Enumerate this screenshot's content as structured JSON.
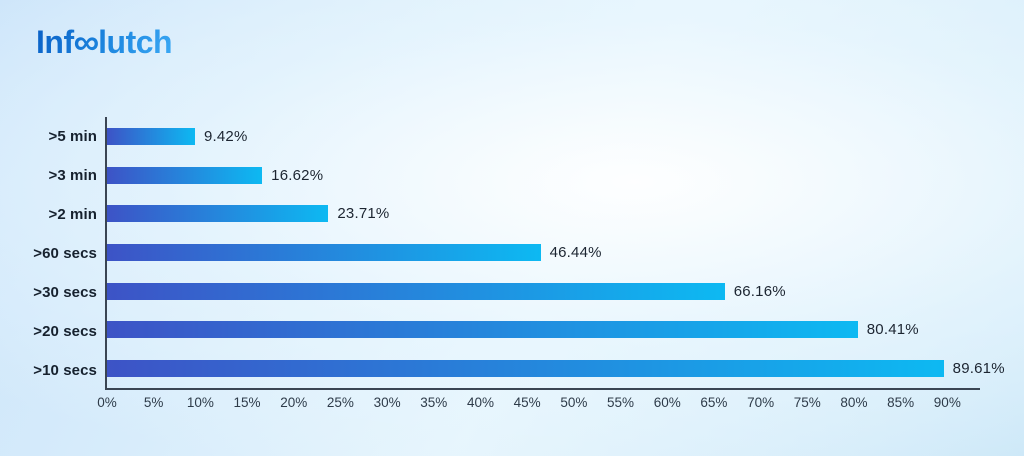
{
  "logo": {
    "prefix": "Inf",
    "infinity": "∞",
    "suffix": "lutch",
    "gradient_start": "#0b63c8",
    "gradient_end": "#38a6f3"
  },
  "chart_data": {
    "type": "bar",
    "orientation": "horizontal",
    "title": "",
    "xlabel": "",
    "ylabel": "",
    "categories": [
      ">5 min",
      ">3 min",
      ">2 min",
      ">60 secs",
      ">30 secs",
      ">20 secs",
      ">10 secs"
    ],
    "values": [
      9.42,
      16.62,
      23.71,
      46.44,
      66.16,
      80.41,
      89.61
    ],
    "value_labels": [
      "9.42%",
      "16.62%",
      "23.71%",
      "46.44%",
      "66.16%",
      "80.41%",
      "89.61%"
    ],
    "x_tick_values": [
      0,
      5,
      10,
      15,
      20,
      25,
      30,
      35,
      40,
      45,
      50,
      55,
      60,
      65,
      70,
      75,
      80,
      85,
      90
    ],
    "x_tick_labels": [
      "0%",
      "5%",
      "10%",
      "15%",
      "20%",
      "25%",
      "30%",
      "35%",
      "40%",
      "45%",
      "50%",
      "55%",
      "60%",
      "65%",
      "70%",
      "75%",
      "80%",
      "85%",
      "90%"
    ],
    "xlim": [
      0,
      93.5
    ],
    "grid": false,
    "legend": false,
    "bar_gradient_start": "#3d53c6",
    "bar_gradient_end": "#0db9f2",
    "axis_color": "#3a4553"
  }
}
